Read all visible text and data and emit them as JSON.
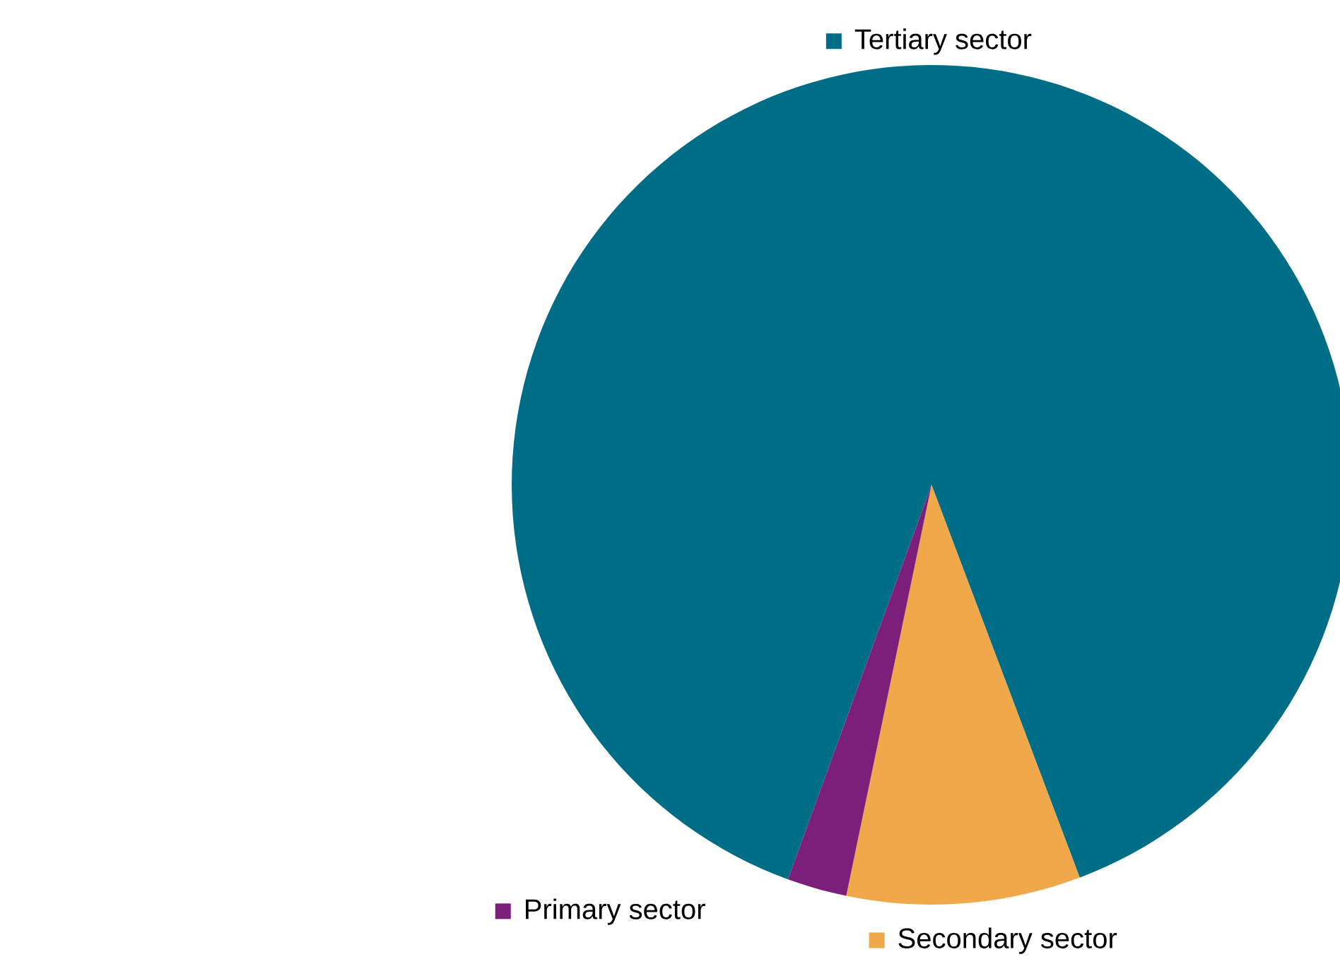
{
  "chart_data": {
    "type": "pie",
    "categories": [
      "Tertiary sector",
      "Secondary sector",
      "Primary sector"
    ],
    "values": [
      88.7,
      9.0,
      2.3
    ],
    "colors": [
      "#006d87",
      "#f0a84a",
      "#7b1f7a"
    ],
    "legend": "bottom left"
  }
}
